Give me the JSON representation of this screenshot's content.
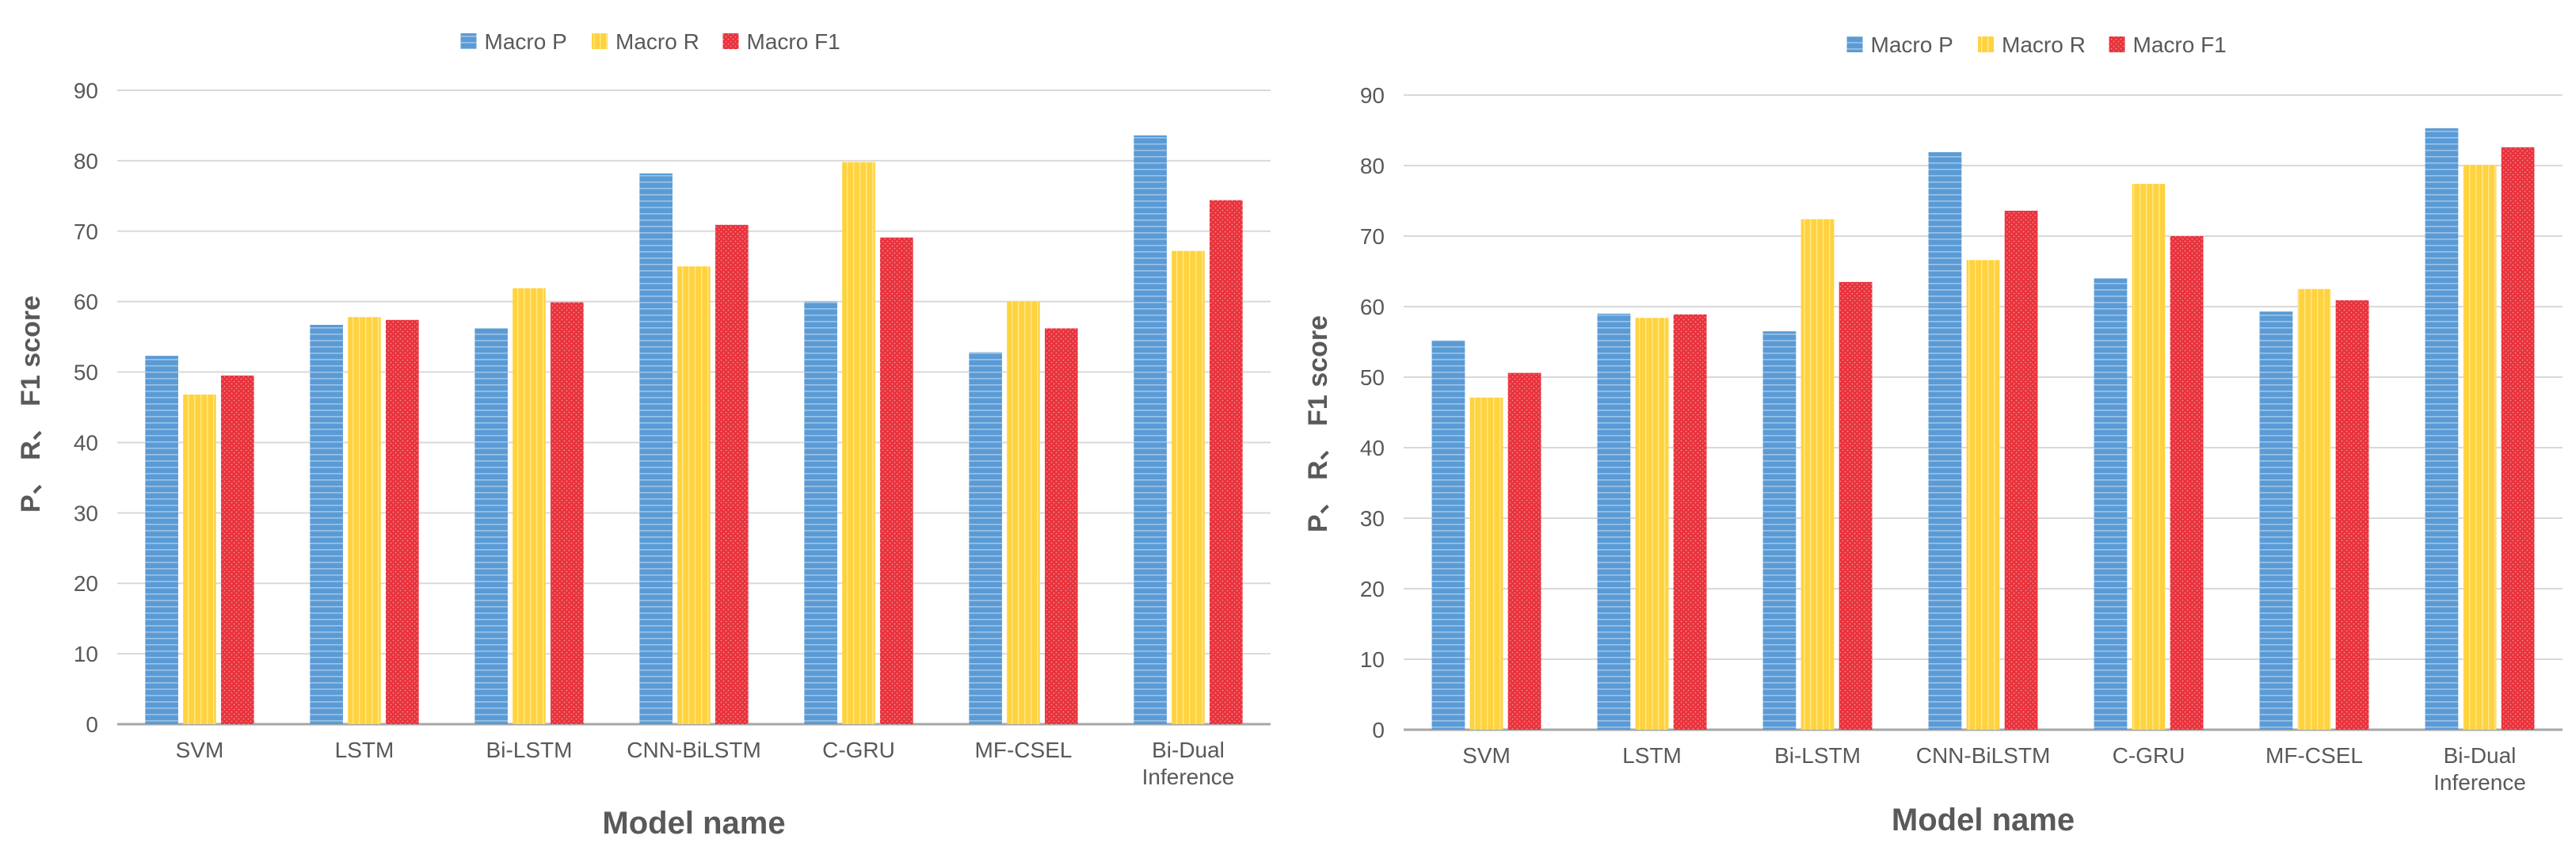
{
  "colors": {
    "macro_p": "#5B9BD5",
    "macro_r": "#FFD23F",
    "macro_f1": "#E8323C",
    "gridline": "#D9D9D9",
    "axis": "#A6A6A6",
    "text": "#595959"
  },
  "chart_data": [
    {
      "type": "bar",
      "title": "",
      "xlabel": "Model name",
      "ylabel": "P、 R、 F1 score",
      "ylim": [
        0,
        90
      ],
      "yticks": [
        "0",
        "10",
        "20",
        "30",
        "40",
        "50",
        "60",
        "70",
        "80",
        "90"
      ],
      "grid": true,
      "legend": "top-center",
      "categories": [
        "SVM",
        "LSTM",
        "Bi-LSTM",
        "CNN-BiLSTM",
        "C-GRU",
        "MF-CSEL",
        "Bi-Dual Inference"
      ],
      "series": [
        {
          "name": "Macro P",
          "color": "#5B9BD5",
          "values": [
            52.3,
            56.7,
            56.2,
            78.2,
            60.0,
            52.8,
            83.6
          ]
        },
        {
          "name": "Macro R",
          "color": "#FFD23F",
          "values": [
            46.8,
            57.8,
            61.9,
            65.0,
            79.8,
            60.0,
            67.2
          ]
        },
        {
          "name": "Macro F1",
          "color": "#E8323C",
          "values": [
            49.5,
            57.4,
            59.9,
            70.9,
            69.1,
            56.2,
            74.4
          ]
        }
      ]
    },
    {
      "type": "bar",
      "title": "",
      "xlabel": "Model name",
      "ylabel": "P、 R、 F1 score",
      "ylim": [
        0,
        90
      ],
      "yticks": [
        "0",
        "10",
        "20",
        "30",
        "40",
        "50",
        "60",
        "70",
        "80",
        "90"
      ],
      "grid": true,
      "legend": "top-center",
      "categories": [
        "SVM",
        "LSTM",
        "Bi-LSTM",
        "CNN-BiLSTM",
        "C-GRU",
        "MF-CSEL",
        "Bi-Dual Inference"
      ],
      "series": [
        {
          "name": "Macro P",
          "color": "#5B9BD5",
          "values": [
            55.2,
            59.0,
            56.5,
            81.9,
            64.0,
            59.3,
            85.3
          ]
        },
        {
          "name": "Macro R",
          "color": "#FFD23F",
          "values": [
            47.1,
            58.4,
            72.4,
            66.6,
            77.4,
            62.5,
            80.1
          ]
        },
        {
          "name": "Macro F1",
          "color": "#E8323C",
          "values": [
            50.6,
            58.9,
            63.5,
            73.6,
            70.0,
            60.9,
            82.6
          ]
        }
      ]
    }
  ]
}
